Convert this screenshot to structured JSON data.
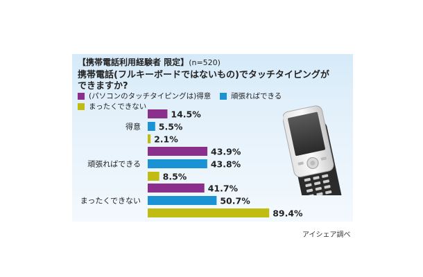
{
  "header": {
    "filter_label": "【携帯電話利用経験者 限定】",
    "sample_size": "(n=520)",
    "question_line1": "携帯電話(フルキーボードではないもの)でタッチタイピングが",
    "question_line2": "できますか?"
  },
  "footer": {
    "source": "アイシェア調べ"
  },
  "chart_data": {
    "type": "bar",
    "orientation": "horizontal",
    "categories": [
      "得意",
      "頑張ればできる",
      "まったくできない"
    ],
    "series": [
      {
        "name": "(パソコンのタッチタイピングは)得意",
        "color": "#8b2f8d",
        "values": [
          14.5,
          43.9,
          41.7
        ]
      },
      {
        "name": "頑張ればできる",
        "color": "#1a92d4",
        "values": [
          5.5,
          43.8,
          50.7
        ]
      },
      {
        "name": "まったくできない",
        "color": "#c0bc12",
        "values": [
          2.1,
          8.5,
          89.4
        ]
      }
    ],
    "value_suffix": "%",
    "xlim": [
      0,
      100
    ]
  }
}
